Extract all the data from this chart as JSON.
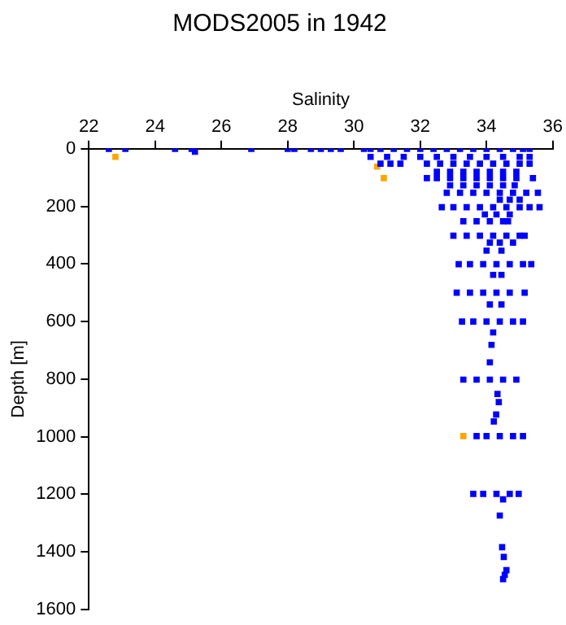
{
  "chart_data": {
    "type": "scatter",
    "title": "MODS2005 in 1942",
    "xlabel": "Salinity",
    "ylabel": "Depth [m]",
    "xlim": [
      22,
      36
    ],
    "xticks": [
      22,
      24,
      26,
      28,
      30,
      32,
      34,
      36
    ],
    "ylim": [
      1600,
      0
    ],
    "yticks": [
      0,
      200,
      400,
      600,
      800,
      1000,
      1200,
      1400,
      1600
    ],
    "grid": false,
    "legend": false,
    "marker": "square",
    "series": [
      {
        "color": "#0000ff",
        "x": [
          22.6,
          23.1,
          24.6,
          25.1,
          25.2,
          26.9,
          28.0,
          28.2,
          28.7,
          29.0,
          29.3,
          29.6,
          30.3,
          30.5,
          30.8,
          31.2,
          31.6,
          32.0,
          32.4,
          32.8,
          33.2,
          33.6,
          34.0,
          34.4,
          34.8,
          35.1,
          35.3,
          30.5,
          31.0,
          31.5,
          32.0,
          32.5,
          33.0,
          33.5,
          34.0,
          34.5,
          35.0,
          35.3,
          30.8,
          31.1,
          31.4,
          32.2,
          32.6,
          33.0,
          33.4,
          33.8,
          34.2,
          34.6,
          35.0,
          35.3,
          32.5,
          32.9,
          33.3,
          33.7,
          34.1,
          34.5,
          34.9,
          32.2,
          32.5,
          32.9,
          33.3,
          33.7,
          34.1,
          34.5,
          34.9,
          35.4,
          32.9,
          33.3,
          33.7,
          34.1,
          34.5,
          34.85,
          32.8,
          33.2,
          33.6,
          34.0,
          34.4,
          34.8,
          35.2,
          35.55,
          34.4,
          34.7,
          35.0,
          32.65,
          33.0,
          33.4,
          33.8,
          34.2,
          34.6,
          35.0,
          35.3,
          35.6,
          33.95,
          34.3,
          34.7,
          33.3,
          33.7,
          34.1,
          34.5,
          34.65,
          33.0,
          33.4,
          33.8,
          34.2,
          34.6,
          35.0,
          35.15,
          34.1,
          34.4,
          34.8,
          34.0,
          34.45,
          33.16,
          33.5,
          33.9,
          34.3,
          34.7,
          35.1,
          35.35,
          34.2,
          34.45,
          33.1,
          33.5,
          33.9,
          34.3,
          34.7,
          35.15,
          34.1,
          34.45,
          33.26,
          33.6,
          34.0,
          34.4,
          34.8,
          35.1,
          34.2,
          34.15,
          34.1,
          33.3,
          33.7,
          34.1,
          34.5,
          34.9,
          34.33,
          34.37,
          34.29,
          34.22,
          33.7,
          34.0,
          34.4,
          34.8,
          35.1,
          33.6,
          33.9,
          34.3,
          34.7,
          34.97,
          34.5,
          34.4,
          34.47,
          34.52,
          34.6,
          34.55,
          34.5
        ],
        "values": [
          0,
          0,
          0,
          0,
          10,
          0,
          0,
          0,
          0,
          0,
          0,
          0,
          0,
          0,
          0,
          0,
          0,
          0,
          0,
          0,
          0,
          0,
          0,
          0,
          0,
          0,
          0,
          28,
          28,
          28,
          28,
          28,
          28,
          28,
          28,
          28,
          28,
          28,
          52,
          52,
          52,
          52,
          52,
          52,
          52,
          52,
          52,
          52,
          52,
          52,
          80,
          80,
          80,
          80,
          80,
          80,
          80,
          102,
          102,
          102,
          102,
          102,
          102,
          102,
          102,
          102,
          127,
          127,
          127,
          127,
          127,
          127,
          153,
          153,
          153,
          153,
          153,
          153,
          153,
          153,
          177,
          177,
          177,
          203,
          203,
          203,
          203,
          203,
          203,
          203,
          203,
          203,
          228,
          228,
          228,
          252,
          252,
          252,
          252,
          252,
          302,
          302,
          302,
          302,
          302,
          302,
          302,
          326,
          326,
          326,
          354,
          354,
          401,
          401,
          401,
          401,
          401,
          401,
          401,
          438,
          438,
          500,
          500,
          500,
          500,
          500,
          500,
          541,
          541,
          600,
          600,
          600,
          600,
          600,
          600,
          638,
          681,
          742,
          802,
          802,
          802,
          802,
          802,
          852,
          880,
          923,
          947,
          998,
          998,
          998,
          998,
          998,
          1199,
          1199,
          1199,
          1199,
          1199,
          1218,
          1274,
          1384,
          1418,
          1464,
          1480,
          1495
        ]
      },
      {
        "color": "#ffa500",
        "x": [
          22.8,
          30.7,
          30.9,
          33.3
        ],
        "values": [
          28,
          62,
          102,
          998
        ]
      }
    ]
  }
}
